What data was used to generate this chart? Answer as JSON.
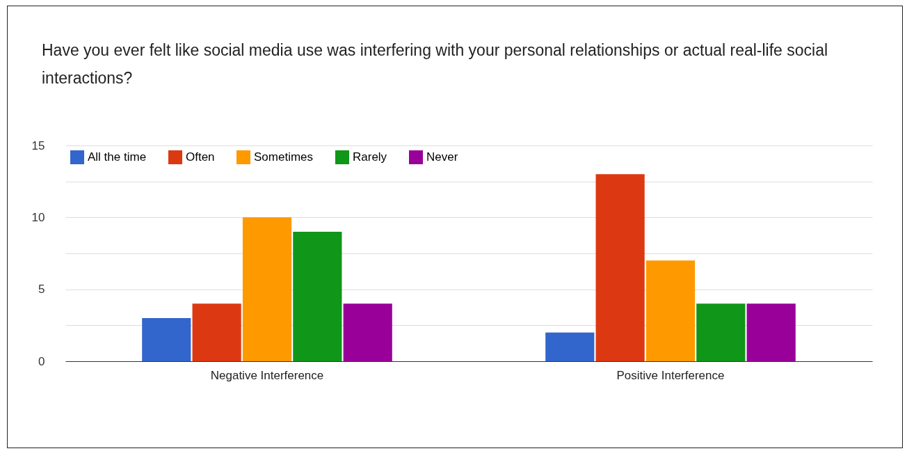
{
  "chart_data": {
    "type": "bar",
    "title": "Have you ever felt like social media use was interfering with your personal relationships or actual real-life social interactions?",
    "categories": [
      "Negative Interference",
      "Positive Interference"
    ],
    "series": [
      {
        "name": "All the time",
        "color": "#3366cc",
        "values": [
          3,
          2
        ]
      },
      {
        "name": "Often",
        "color": "#dc3912",
        "values": [
          4,
          13
        ]
      },
      {
        "name": "Sometimes",
        "color": "#ff9900",
        "values": [
          10,
          7
        ]
      },
      {
        "name": "Rarely",
        "color": "#109618",
        "values": [
          9,
          4
        ]
      },
      {
        "name": "Never",
        "color": "#990099",
        "values": [
          4,
          4
        ]
      }
    ],
    "ylim": [
      0,
      15
    ],
    "yticks": [
      0,
      {
        "value": 2.5,
        "label": null
      },
      5,
      {
        "value": 7.5,
        "label": null
      },
      10,
      {
        "value": 12.5,
        "label": null
      },
      15
    ],
    "grid": "y",
    "legend": "top left"
  }
}
